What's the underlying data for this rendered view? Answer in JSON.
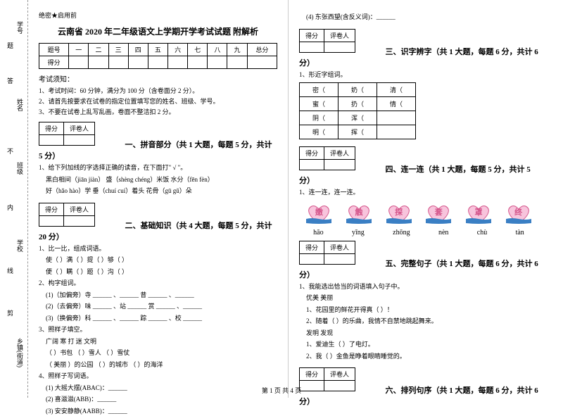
{
  "secret": "绝密★启用前",
  "title": "云南省 2020 年二年级语文上学期开学考试试题 附解析",
  "binding": {
    "l1": "乡镇(街道)",
    "l2": "学校",
    "l3": "班级",
    "l4": "姓名",
    "l5": "学号",
    "c1": "剪",
    "c2": "线",
    "c3": "内",
    "c4": "不",
    "c5": "答",
    "c6": "题"
  },
  "score_headers": [
    "题号",
    "一",
    "二",
    "三",
    "四",
    "五",
    "六",
    "七",
    "八",
    "九",
    "总分"
  ],
  "score_row": "得分",
  "notice_hd": "考试须知：",
  "notice": [
    "1、考试时间：60 分钟，满分为 100 分（含卷面分 2 分）。",
    "2、请首先按要求在试卷的指定位置填写您的姓名、班级、学号。",
    "3、不要在试卷上乱写乱画，卷面不整洁扣 2 分。"
  ],
  "secbox": {
    "a": "得分",
    "b": "评卷人"
  },
  "sec1": {
    "title": "一、拼音部分（共 1 大题，每题 5 分，共计 5 分）",
    "q1": "1、给下列加线的字选择正确的读音，在下面打\" √ \"。",
    "lines": [
      "黑白相间（jiān  jiàn）     盛（shèng chéng）米饭     水分（fēn  fèn）",
      "好（hǎo  hào）学          垂（chuí   cuí）着头      花骨（gū  gǔ）朵"
    ]
  },
  "sec2": {
    "title": "二、基础知识（共 4 大题，每题 5 分，共计 20 分）",
    "q1": "1、比一比，组成词语。",
    "l1": "使（        ）满（        ）提（        ）够（        ）",
    "l2": "便（        ）瞒（        ）题（        ）沟（        ）",
    "q2": "2、构字组词。",
    "r1": "(1)（加偏旁）寺 ______ 、______      昔 ______ 、______",
    "r2": "(2)（去偏旁）味 ______ 、站 ______    赏 ______ 、______",
    "r3": "(3)（换偏旁）科 ______ 、______      踪 ______ 、校 ______",
    "q3": "3、照样子填空。",
    "w": "广阔    寒    打    迷    文明",
    "p1": "（        ）书包    （        ）雪人    （        ）雪仗",
    "p2": "（  美丽  ）的公园    （        ）的城市    （        ）的海洋",
    "q4": "4、照样子写词语。",
    "s1": "(1) 大摇大摆(ABAC)：______",
    "s2": "(2) 喜滋滋(ABB)：______",
    "s3": "(3) 安安静静(AABB)：______"
  },
  "top_right": "(4) 东张西望(含反义词)：______",
  "sec3": {
    "title": "三、识字辨字（共 1 大题，每题 6 分，共计 6 分）",
    "q1": "1、形近字组词。",
    "cells": [
      [
        "密（",
        "奶（",
        "清（"
      ],
      [
        "蜜（",
        "扔（",
        "情（"
      ],
      [
        "阴（",
        "浑（",
        ""
      ],
      [
        "明（",
        "挥（",
        ""
      ]
    ]
  },
  "sec4": {
    "title": "四、连一连（共 1 大题，每题 5 分，共计 5 分）",
    "q1": "1、连一连，连一连。",
    "chars": [
      "嫩",
      "触",
      "探",
      "套",
      "罩",
      "终"
    ],
    "pinyin": [
      "hāo",
      "yīng",
      "zhōng",
      "nèn",
      "chù",
      "tàn"
    ]
  },
  "sec5": {
    "title": "五、完整句子（共 1 大题，每题 6 分，共计 6 分）",
    "q1": "1、我能选出恰当的词语填入句子中。",
    "w": "优美    美丽",
    "l1": "1、花园里的鲜花开得真（        ）！",
    "l2": "2、随着（        ）的乐曲，我情不自禁地跳起舞来。",
    "w2": "发明    发现",
    "l3": "1、爱迪生（        ）了电灯。",
    "l4": "2、我（        ）金鱼是睁着眼睛睡觉的。"
  },
  "sec6": {
    "title": "六、排列句序（共 1 大题，每题 6 分，共计 6 分）"
  },
  "footer": "第 1 页 共 4 页"
}
